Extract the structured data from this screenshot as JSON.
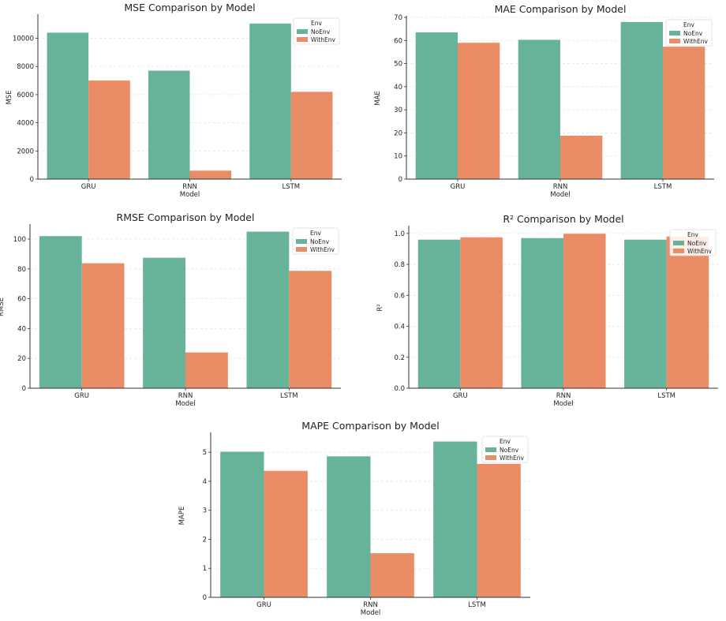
{
  "colors": {
    "NoEnv": "#66b39a",
    "WithEnv": "#ea8c66",
    "grid": "#e6e6e6",
    "axis": "#333333"
  },
  "chart_data": [
    {
      "type": "bar",
      "title": "MSE Comparison by Model",
      "xlabel": "Model",
      "ylabel": "MSE",
      "categories": [
        "GRU",
        "RNN",
        "LSTM"
      ],
      "series": [
        {
          "name": "NoEnv",
          "values": [
            10400,
            7700,
            11050
          ]
        },
        {
          "name": "WithEnv",
          "values": [
            7000,
            600,
            6200
          ]
        }
      ],
      "ylim": [
        0,
        11600
      ],
      "yticks": [
        0,
        2000,
        4000,
        6000,
        8000,
        10000
      ],
      "legend_title": "Env",
      "legend_position": "top-right",
      "grid": "y"
    },
    {
      "type": "bar",
      "title": "MAE Comparison by Model",
      "xlabel": "Model",
      "ylabel": "MAE",
      "categories": [
        "GRU",
        "RNN",
        "LSTM"
      ],
      "series": [
        {
          "name": "NoEnv",
          "values": [
            63.5,
            60.3,
            68.0
          ]
        },
        {
          "name": "WithEnv",
          "values": [
            59.0,
            18.8,
            57.3
          ]
        }
      ],
      "ylim": [
        0,
        70
      ],
      "yticks": [
        0,
        10,
        20,
        30,
        40,
        50,
        60,
        70
      ],
      "legend_title": "Env",
      "legend_position": "top-right",
      "grid": "y"
    },
    {
      "type": "bar",
      "title": "RMSE Comparison by Model",
      "xlabel": "Model",
      "ylabel": "RMSE",
      "categories": [
        "GRU",
        "RNN",
        "LSTM"
      ],
      "series": [
        {
          "name": "NoEnv",
          "values": [
            102,
            87.5,
            105
          ]
        },
        {
          "name": "WithEnv",
          "values": [
            83.8,
            24,
            78.7
          ]
        }
      ],
      "ylim": [
        0,
        109
      ],
      "yticks": [
        0,
        20,
        40,
        60,
        80,
        100
      ],
      "legend_title": "Env",
      "legend_position": "top-right",
      "grid": "y"
    },
    {
      "type": "bar",
      "title": "R² Comparison by Model",
      "xlabel": "Model",
      "ylabel": "R²",
      "categories": [
        "GRU",
        "RNN",
        "LSTM"
      ],
      "series": [
        {
          "name": "NoEnv",
          "values": [
            0.96,
            0.97,
            0.96
          ]
        },
        {
          "name": "WithEnv",
          "values": [
            0.975,
            0.998,
            0.98
          ]
        }
      ],
      "ylim": [
        0,
        1.04
      ],
      "yticks": [
        0.0,
        0.2,
        0.4,
        0.6,
        0.8,
        1.0
      ],
      "legend_title": "Env",
      "legend_position": "top-right",
      "grid": "y"
    },
    {
      "type": "bar",
      "title": "MAPE Comparison by Model",
      "xlabel": "Model",
      "ylabel": "MAPE",
      "categories": [
        "GRU",
        "RNN",
        "LSTM"
      ],
      "series": [
        {
          "name": "NoEnv",
          "values": [
            5.02,
            4.86,
            5.37
          ]
        },
        {
          "name": "WithEnv",
          "values": [
            4.36,
            1.52,
            4.6
          ]
        }
      ],
      "ylim": [
        0,
        5.63
      ],
      "yticks": [
        0,
        1,
        2,
        3,
        4,
        5
      ],
      "legend_title": "Env",
      "legend_position": "top-right",
      "grid": "y"
    }
  ]
}
